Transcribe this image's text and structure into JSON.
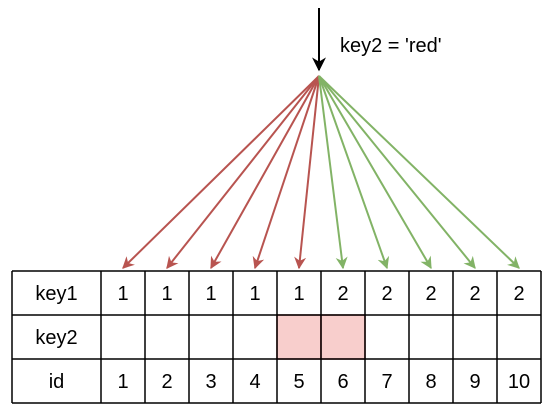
{
  "query": {
    "label": "key2 = 'red'"
  },
  "table": {
    "rows": [
      {
        "header": "key1",
        "values": [
          "1",
          "1",
          "1",
          "1",
          "1",
          "2",
          "2",
          "2",
          "2",
          "2"
        ]
      },
      {
        "header": "key2",
        "values": [
          "",
          "",
          "",
          "",
          "",
          "",
          "",
          "",
          "",
          ""
        ]
      },
      {
        "header": "id",
        "values": [
          "1",
          "2",
          "3",
          "4",
          "5",
          "6",
          "7",
          "8",
          "9",
          "10"
        ]
      }
    ],
    "highlighted_key2_columns": [
      5,
      6
    ]
  },
  "arrows": {
    "red_target_columns": [
      1,
      2,
      3,
      4,
      5
    ],
    "green_target_columns": [
      6,
      7,
      8,
      9,
      10
    ]
  },
  "colors": {
    "red_arrow": "#b85450",
    "green_arrow": "#82b366",
    "highlight_fill": "#f8cecc",
    "highlight_stroke": "#b85450",
    "grid": "#000000",
    "black_arrow": "#000000"
  }
}
